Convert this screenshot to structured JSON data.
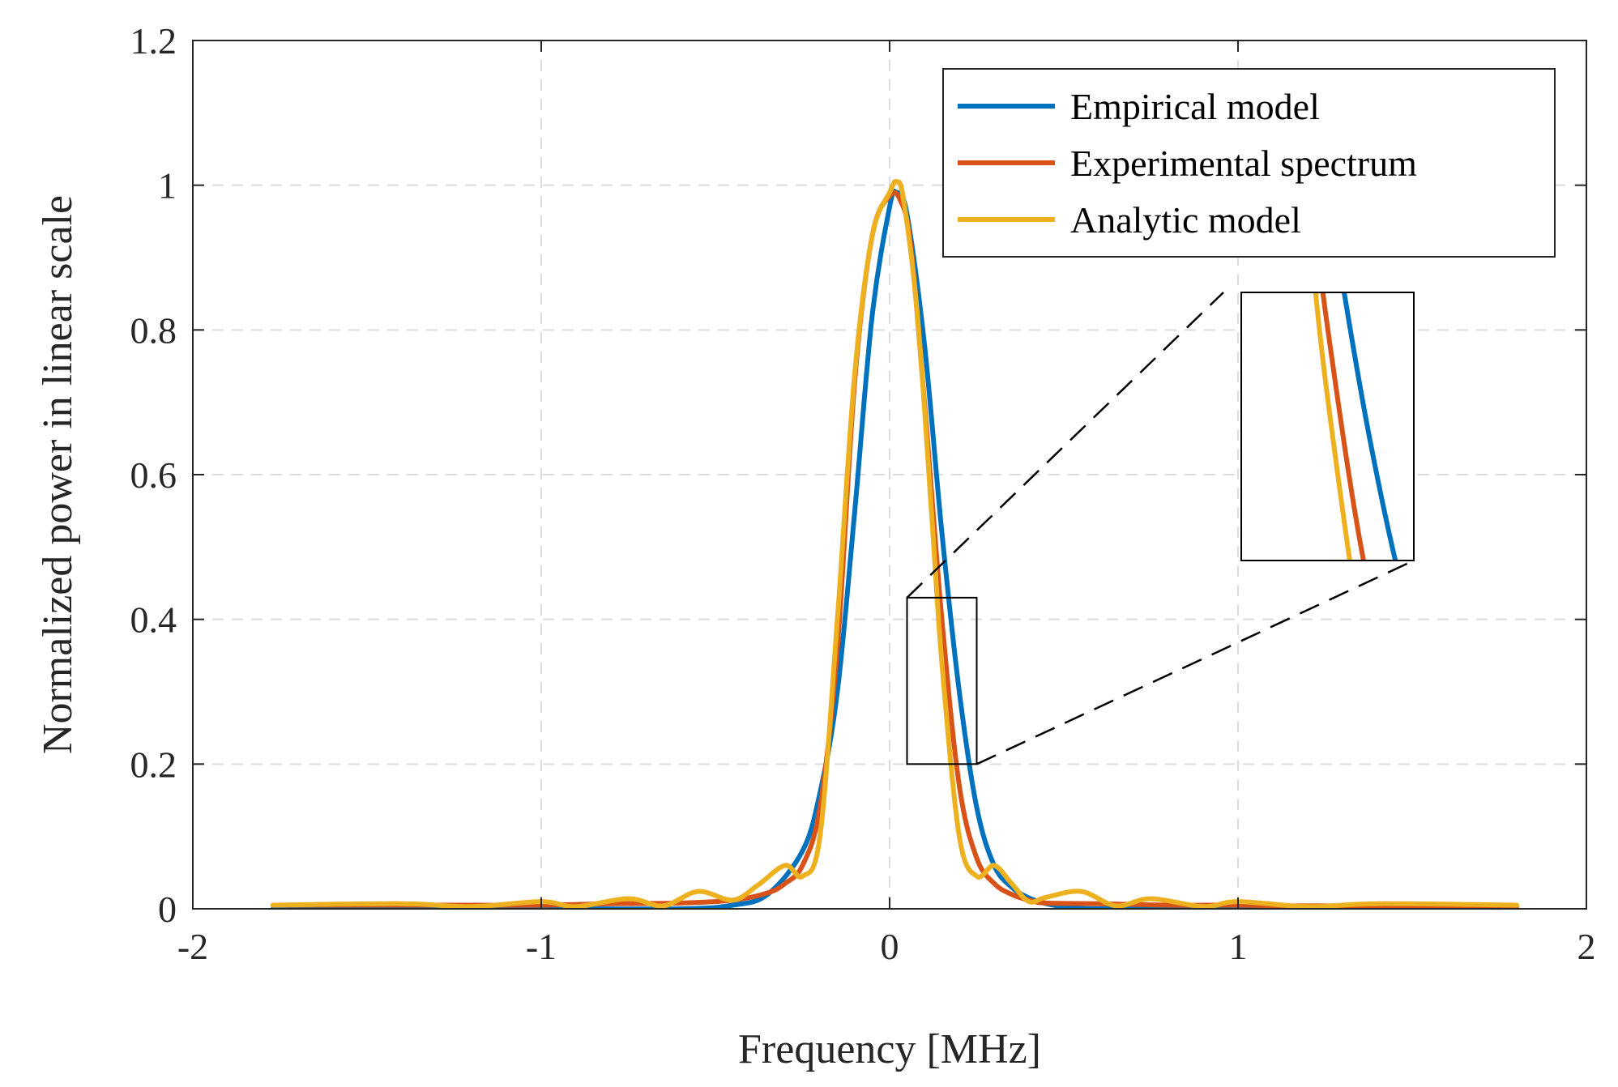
{
  "chart_data": {
    "type": "line",
    "title": "",
    "xlabel": "Frequency [MHz]",
    "ylabel": "Normalized power in linear scale",
    "xlim": [
      -2,
      2
    ],
    "ylim": [
      0,
      1.2
    ],
    "xticks": [
      -2,
      -1,
      0,
      1,
      2
    ],
    "xtick_labels": [
      "-2",
      "-1",
      "0",
      "1",
      "2"
    ],
    "yticks": [
      0,
      0.2,
      0.4,
      0.6,
      0.8,
      1,
      1.2
    ],
    "ytick_labels": [
      "0",
      "0.2",
      "0.4",
      "0.6",
      "0.8",
      "1",
      "1.2"
    ],
    "grid": true,
    "legend_position": "top-right",
    "series": [
      {
        "name": "Empirical model",
        "color": "#0072BD",
        "x": [
          -1.77,
          -1.0,
          -0.6,
          -0.45,
          -0.35,
          -0.25,
          -0.2,
          -0.15,
          -0.1,
          -0.05,
          0.0,
          0.02,
          0.05,
          0.1,
          0.15,
          0.2,
          0.25,
          0.3,
          0.35,
          0.4,
          0.45,
          0.5,
          0.6,
          1.0,
          1.8
        ],
        "y": [
          0.0,
          0.0,
          0.0,
          0.005,
          0.02,
          0.08,
          0.16,
          0.3,
          0.55,
          0.82,
          0.97,
          0.99,
          0.96,
          0.78,
          0.52,
          0.3,
          0.14,
          0.06,
          0.03,
          0.015,
          0.007,
          0.003,
          0.0,
          0.0,
          0.0
        ]
      },
      {
        "name": "Experimental spectrum",
        "color": "#D95319",
        "x": [
          -1.77,
          -1.2,
          -1.0,
          -0.8,
          -0.6,
          -0.45,
          -0.35,
          -0.3,
          -0.25,
          -0.2,
          -0.15,
          -0.1,
          -0.05,
          0.0,
          0.03,
          0.06,
          0.1,
          0.15,
          0.2,
          0.25,
          0.3,
          0.35,
          0.4,
          0.45,
          0.6,
          0.8,
          1.0,
          1.2,
          1.8
        ],
        "y": [
          0.005,
          0.005,
          0.005,
          0.007,
          0.008,
          0.012,
          0.022,
          0.035,
          0.06,
          0.14,
          0.36,
          0.73,
          0.93,
          0.985,
          0.98,
          0.92,
          0.7,
          0.4,
          0.17,
          0.07,
          0.035,
          0.02,
          0.012,
          0.008,
          0.007,
          0.005,
          0.005,
          0.004,
          0.004
        ]
      },
      {
        "name": "Analytic model",
        "color": "#EDB120",
        "x": [
          -1.77,
          -1.4,
          -1.2,
          -1.0,
          -0.9,
          -0.75,
          -0.65,
          -0.55,
          -0.45,
          -0.38,
          -0.3,
          -0.25,
          -0.2,
          -0.15,
          -0.1,
          -0.05,
          0.0,
          0.02,
          0.04,
          0.08,
          0.12,
          0.15,
          0.2,
          0.25,
          0.3,
          0.35,
          0.4,
          0.45,
          0.55,
          0.65,
          0.75,
          0.9,
          1.0,
          1.2,
          1.4,
          1.8
        ],
        "y": [
          0.005,
          0.007,
          0.003,
          0.01,
          0.003,
          0.014,
          0.004,
          0.024,
          0.012,
          0.032,
          0.06,
          0.045,
          0.1,
          0.4,
          0.74,
          0.93,
          0.99,
          1.005,
          0.98,
          0.82,
          0.55,
          0.34,
          0.1,
          0.045,
          0.06,
          0.035,
          0.01,
          0.016,
          0.024,
          0.004,
          0.014,
          0.003,
          0.01,
          0.003,
          0.007,
          0.005
        ]
      }
    ],
    "annotations": [
      {
        "type": "zoom_inset",
        "source_region": {
          "x": [
            0.05,
            0.25
          ],
          "y": [
            0.2,
            0.43
          ]
        },
        "inset_location": "right of peak, upper middle"
      }
    ]
  }
}
